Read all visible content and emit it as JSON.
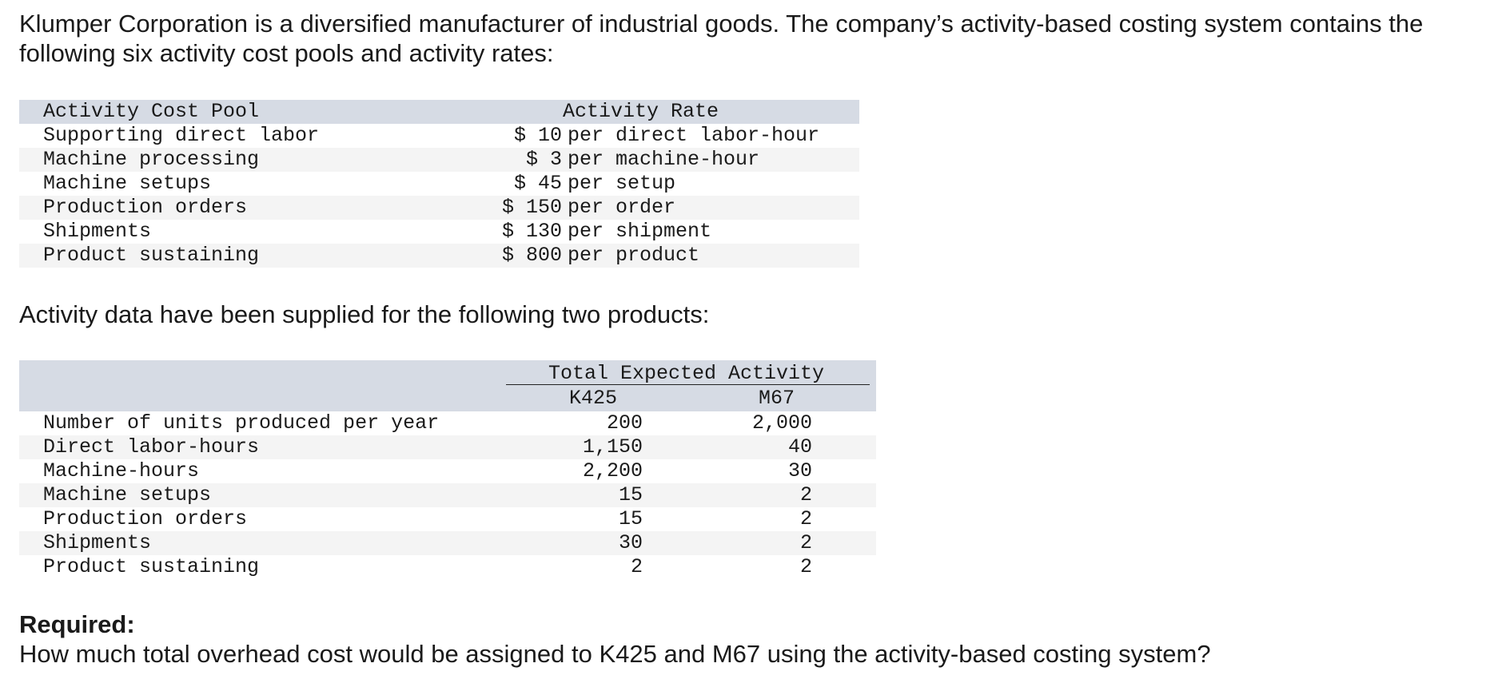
{
  "intro": "Klumper Corporation is a diversified manufacturer of industrial goods. The company’s activity-based costing system contains the following six activity cost pools and activity rates:",
  "rates_table": {
    "header_pool": "Activity Cost Pool",
    "header_rate": "Activity Rate",
    "rows": [
      {
        "pool": "Supporting direct labor",
        "amount": "$ 10",
        "unit": "per direct labor-hour"
      },
      {
        "pool": "Machine processing",
        "amount": "$ 3",
        "unit": "per machine-hour"
      },
      {
        "pool": "Machine setups",
        "amount": "$ 45",
        "unit": "per setup"
      },
      {
        "pool": "Production orders",
        "amount": "$ 150",
        "unit": "per order"
      },
      {
        "pool": "Shipments",
        "amount": "$ 130",
        "unit": "per shipment"
      },
      {
        "pool": "Product sustaining",
        "amount": "$ 800",
        "unit": "per product"
      }
    ]
  },
  "activity_intro": "Activity data have been supplied for the following two products:",
  "activity_table": {
    "header_total": "Total Expected Activity",
    "header_k": "K425",
    "header_m": "M67",
    "rows": [
      {
        "label": "Number of units produced per year",
        "k425": "200",
        "m67": "2,000"
      },
      {
        "label": "Direct labor-hours",
        "k425": "1,150",
        "m67": "40"
      },
      {
        "label": "Machine-hours",
        "k425": "2,200",
        "m67": "30"
      },
      {
        "label": "Machine setups",
        "k425": "15",
        "m67": "2"
      },
      {
        "label": "Production orders",
        "k425": "15",
        "m67": "2"
      },
      {
        "label": "Shipments",
        "k425": "30",
        "m67": "2"
      },
      {
        "label": "Product sustaining",
        "k425": "2",
        "m67": "2"
      }
    ]
  },
  "required_label": "Required:",
  "question": "How much total overhead cost would be assigned to K425 and M67 using the activity-based costing system?"
}
